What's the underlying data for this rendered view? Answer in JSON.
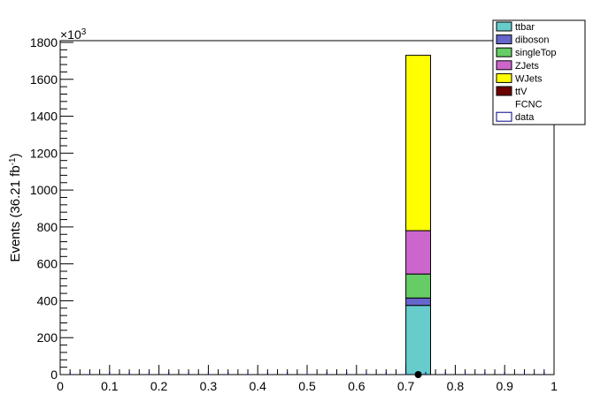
{
  "chart_data": {
    "type": "bar",
    "stacked": true,
    "title": "",
    "xlabel": "",
    "ylabel": "Events (36.21 fb",
    "ylabel_sup": "-1",
    "ylabel_close": ")",
    "y_multiplier": "×10",
    "y_multiplier_exp": "3",
    "xlim": [
      0,
      1
    ],
    "ylim": [
      0,
      1820
    ],
    "x_ticks": [
      "0",
      "0.1",
      "0.2",
      "0.3",
      "0.4",
      "0.5",
      "0.6",
      "0.7",
      "0.8",
      "0.9",
      "1"
    ],
    "y_ticks": [
      "0",
      "200",
      "400",
      "600",
      "800",
      "1000",
      "1200",
      "1400",
      "1600",
      "1800"
    ],
    "bin": [
      0.7,
      0.75
    ],
    "series": [
      {
        "name": "ttbar",
        "color": "#66cccc",
        "value": 375
      },
      {
        "name": "diboson",
        "color": "#6666cc",
        "value": 40
      },
      {
        "name": "singleTop",
        "color": "#66cc66",
        "value": 130
      },
      {
        "name": "ZJets",
        "color": "#cc66cc",
        "value": 235
      },
      {
        "name": "WJets",
        "color": "#ffff00",
        "value": 950
      },
      {
        "name": "ttV",
        "color": "#6b0000",
        "value": 0
      },
      {
        "name": "FCNC",
        "color": "none",
        "value": 0
      },
      {
        "name": "data",
        "color": "#ffffff",
        "value": 0
      }
    ],
    "data_point": {
      "x": 0.725,
      "y": 0
    },
    "legend_position": "top-right"
  }
}
